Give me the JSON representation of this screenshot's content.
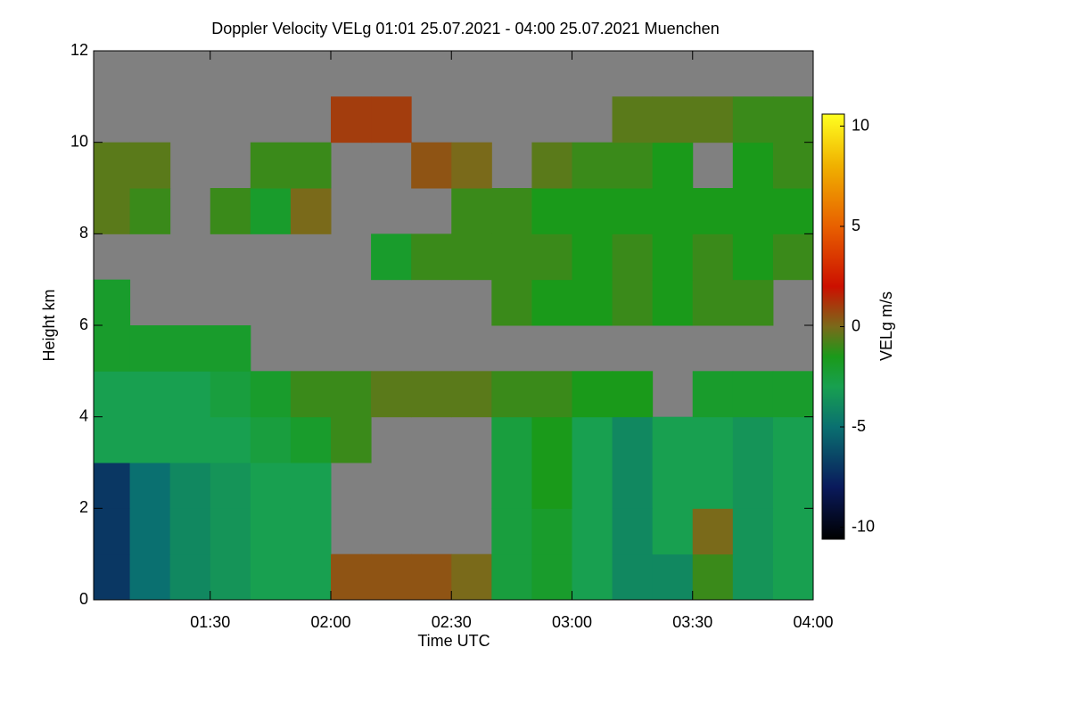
{
  "chart_data": {
    "type": "heatmap",
    "title": "Doppler Velocity VELg   01:01 25.07.2021 - 04:00 25.07.2021 Muenchen",
    "xlabel": "Time UTC",
    "ylabel": "Height km",
    "colorbar_label": "VELg m/s",
    "background": "#808080",
    "xlim": [
      61,
      240
    ],
    "xticks": [
      {
        "value": 90,
        "label": "01:30"
      },
      {
        "value": 120,
        "label": "02:00"
      },
      {
        "value": 150,
        "label": "02:30"
      },
      {
        "value": 180,
        "label": "03:00"
      },
      {
        "value": 210,
        "label": "03:30"
      },
      {
        "value": 240,
        "label": "04:00"
      }
    ],
    "ylim": [
      0,
      12
    ],
    "yticks": [
      0,
      2,
      4,
      6,
      8,
      10,
      12
    ],
    "x_edges": [
      60,
      70,
      80,
      90,
      100,
      110,
      120,
      130,
      140,
      150,
      160,
      170,
      180,
      190,
      200,
      210,
      220,
      230,
      240
    ],
    "y_edges": [
      0,
      1,
      2,
      3,
      4,
      5,
      6,
      7,
      8,
      9,
      10,
      11,
      12
    ],
    "z": [
      [
        -7,
        -5,
        -4,
        -3.5,
        -3,
        -3,
        0.5,
        0.5,
        0.5,
        0,
        -2.5,
        -2,
        -3,
        -4,
        -4,
        -1,
        -3.5,
        -3
      ],
      [
        -7,
        -5,
        -4,
        -3.5,
        -3,
        -3,
        null,
        null,
        null,
        null,
        -2.5,
        -2,
        -3,
        -4,
        -3,
        0,
        -3.5,
        -3
      ],
      [
        -7,
        -5,
        -4,
        -3.5,
        -3,
        -3,
        null,
        null,
        null,
        null,
        -2.5,
        -1.5,
        -3,
        -4,
        -3,
        -3,
        -3.5,
        -3
      ],
      [
        -3,
        -3,
        -3,
        -3,
        -2.5,
        -2,
        -1,
        null,
        null,
        null,
        -2.5,
        -1.5,
        -3,
        -4,
        -3,
        -3,
        -3.5,
        -3
      ],
      [
        -3,
        -3,
        -3,
        -2.5,
        -2,
        -1,
        -1,
        -0.5,
        -0.5,
        -0.5,
        -1,
        -1,
        -1.5,
        -1.5,
        null,
        -2,
        -2,
        -2
      ],
      [
        -2,
        -2,
        -2,
        -2,
        null,
        null,
        null,
        null,
        null,
        null,
        null,
        null,
        null,
        null,
        null,
        null,
        null,
        null
      ],
      [
        -2,
        null,
        null,
        null,
        null,
        null,
        null,
        null,
        null,
        null,
        -1,
        -1.5,
        -1.5,
        -1,
        -1.5,
        -1,
        -1,
        null
      ],
      [
        null,
        null,
        null,
        null,
        null,
        null,
        null,
        -2,
        -1,
        -1,
        -1,
        -1,
        -1.5,
        -1,
        -1.5,
        -1,
        -1.5,
        -1
      ],
      [
        -0.5,
        -1,
        null,
        -1,
        -2,
        0,
        null,
        null,
        null,
        -1,
        -1,
        -1.5,
        -1.5,
        -1.5,
        -1.5,
        -1.5,
        -1.5,
        -1.5
      ],
      [
        -0.5,
        -0.5,
        null,
        null,
        -1,
        -1,
        null,
        null,
        0.5,
        0,
        null,
        -0.5,
        -1,
        -1,
        -1.5,
        null,
        -1.5,
        -1
      ],
      [
        null,
        null,
        null,
        null,
        null,
        null,
        1,
        1,
        null,
        null,
        null,
        null,
        null,
        -0.5,
        -0.5,
        -0.5,
        -1,
        -1
      ],
      [
        null,
        null,
        null,
        null,
        null,
        null,
        null,
        null,
        null,
        null,
        null,
        null,
        null,
        null,
        null,
        null,
        null,
        null
      ]
    ],
    "clim": [
      -10.6,
      10.6
    ],
    "cticks": [
      -10,
      -5,
      0,
      5,
      10
    ],
    "colormap": [
      {
        "value": -10.6,
        "color": "#000000"
      },
      {
        "value": -8,
        "color": "#0a1a5c"
      },
      {
        "value": -5,
        "color": "#0a7070"
      },
      {
        "value": -3,
        "color": "#18a050"
      },
      {
        "value": -1.5,
        "color": "#1a9a1a"
      },
      {
        "value": 0,
        "color": "#7a6a1a"
      },
      {
        "value": 2,
        "color": "#cc1000"
      },
      {
        "value": 5,
        "color": "#e86000"
      },
      {
        "value": 8,
        "color": "#f0b000"
      },
      {
        "value": 10.6,
        "color": "#ffff20"
      }
    ]
  }
}
